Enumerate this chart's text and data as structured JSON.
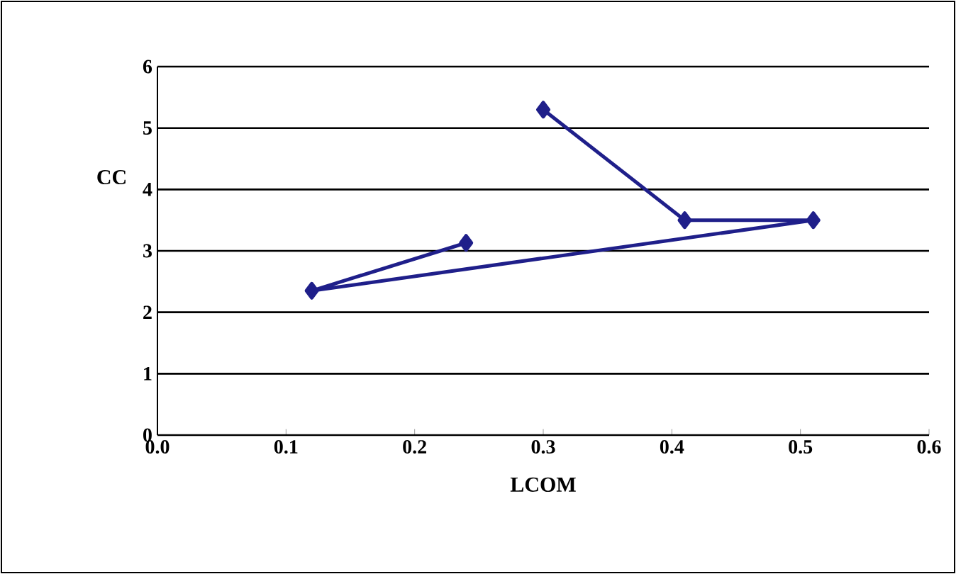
{
  "chart_data": {
    "type": "line",
    "xlabel": "LCOM",
    "ylabel": "CC",
    "x": [
      0.3,
      0.41,
      0.51,
      0.12,
      0.24
    ],
    "series": [
      {
        "color": "#1f1f8a",
        "values": [
          5.3,
          3.5,
          3.5,
          2.35,
          3.13
        ]
      }
    ],
    "xlim": [
      0.0,
      0.6
    ],
    "xticks": [
      {
        "value": 0,
        "label": "0.0"
      },
      {
        "value": 0.1,
        "label": "0.1"
      },
      {
        "value": 0.2,
        "label": "0.2"
      },
      {
        "value": 0.3,
        "label": "0.3"
      },
      {
        "value": 0.4,
        "label": "0.4"
      },
      {
        "value": 0.5,
        "label": "0.5"
      },
      {
        "value": 0.6,
        "label": "0.6"
      }
    ],
    "ylim": [
      0,
      6
    ],
    "yticks": [
      0,
      1,
      2,
      3,
      4,
      5,
      6
    ],
    "grid": "y",
    "marker": "diamond",
    "line_style": "solid"
  }
}
